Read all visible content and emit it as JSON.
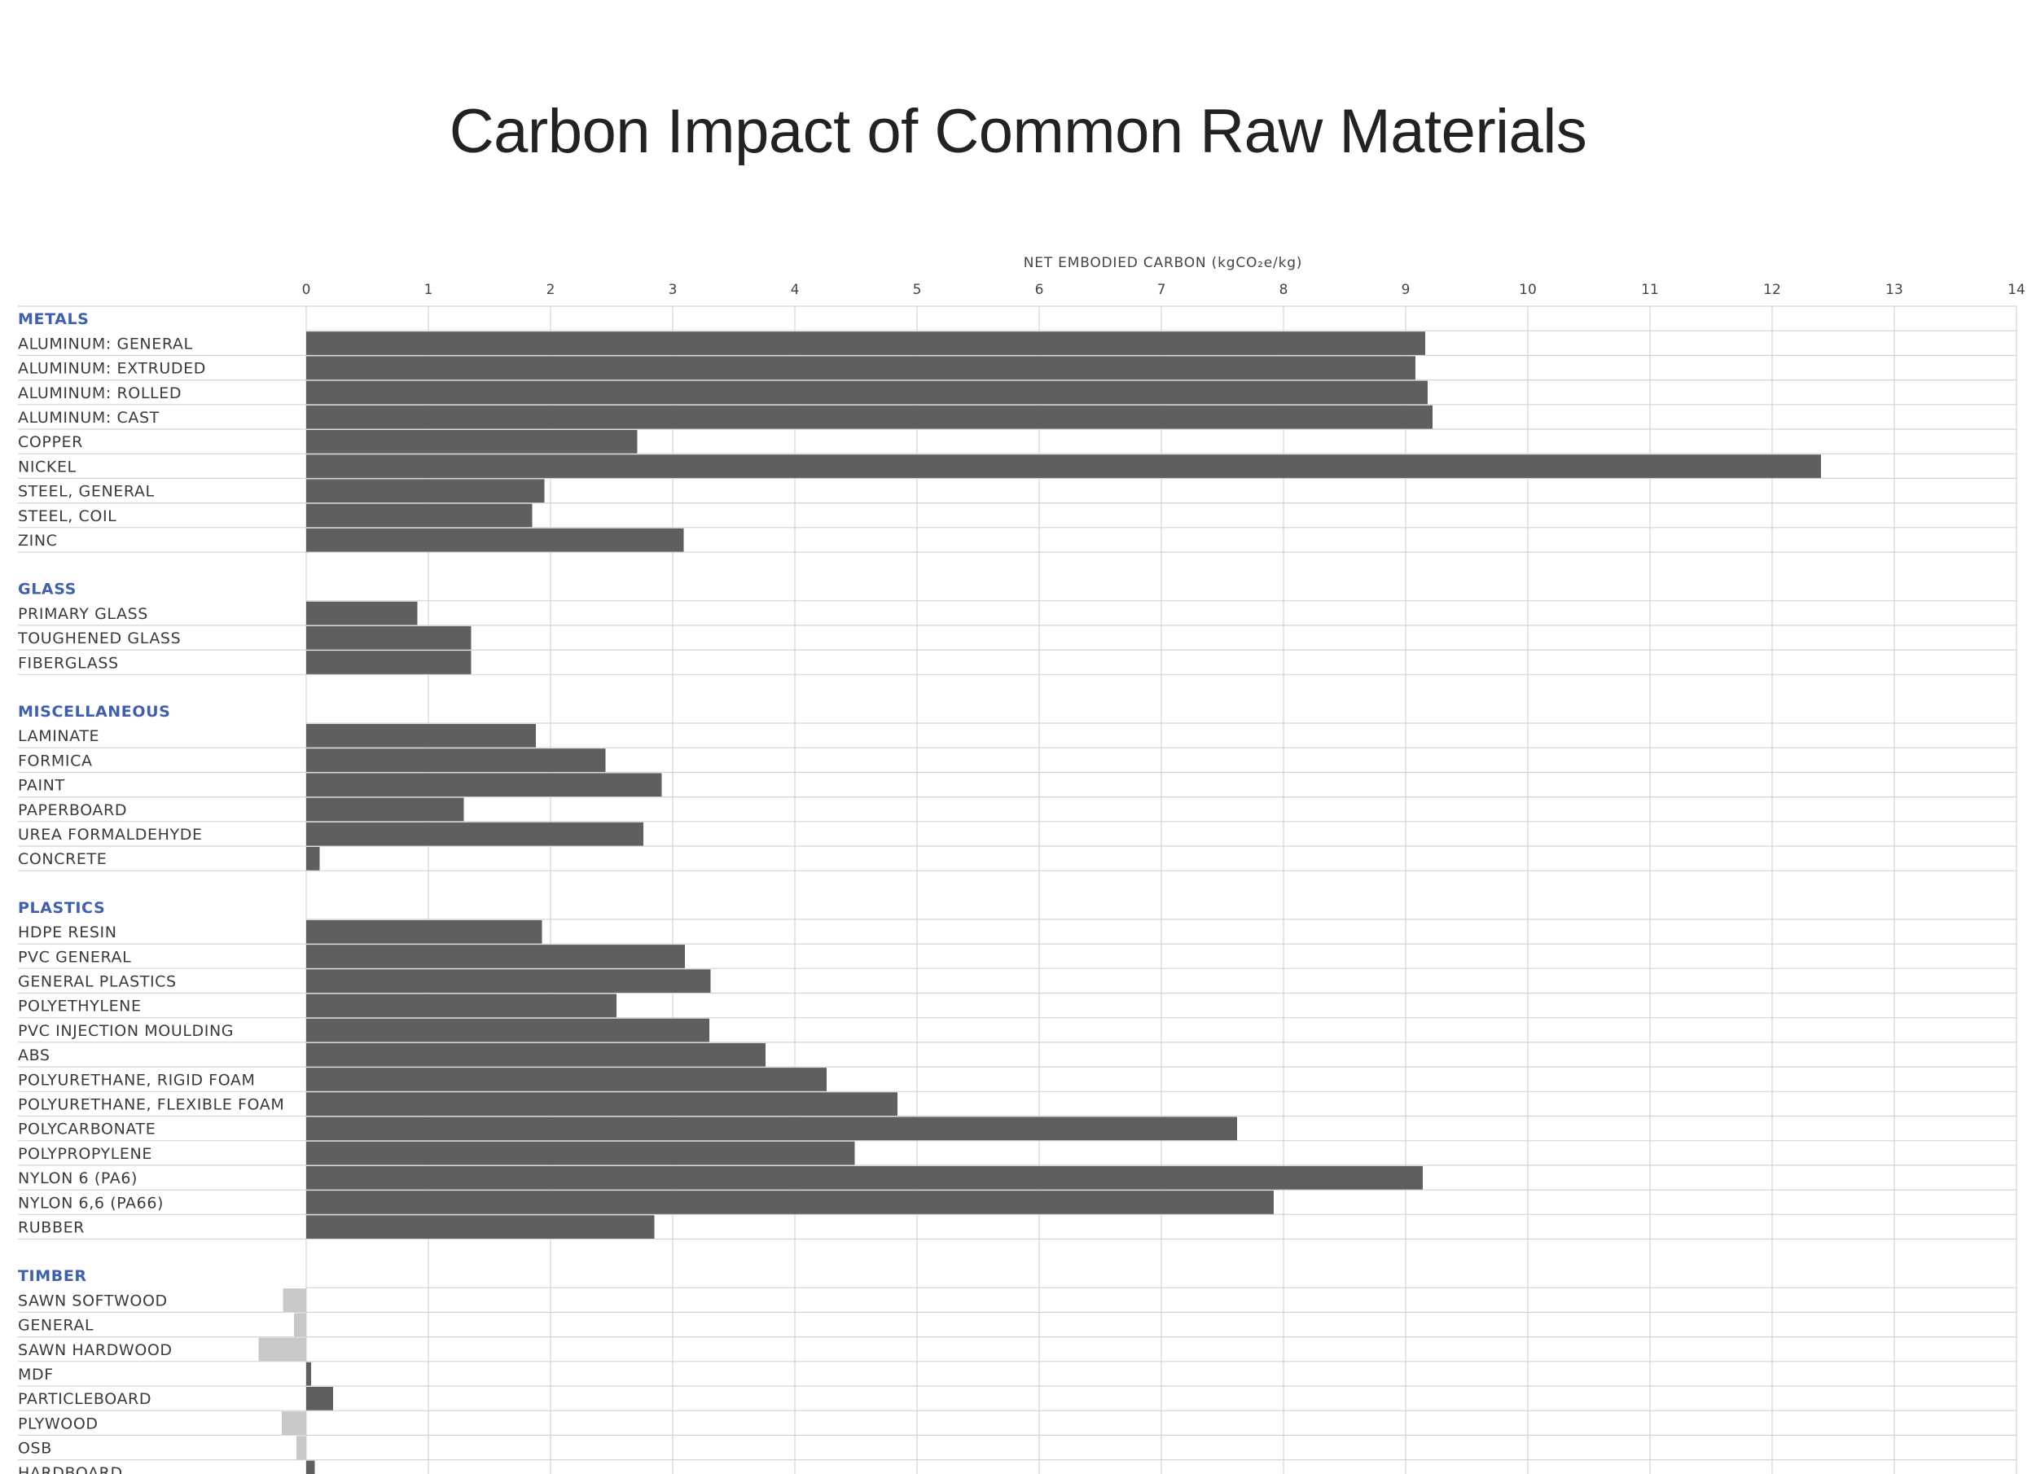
{
  "chart_data": {
    "type": "bar",
    "orientation": "horizontal",
    "title": "Carbon Impact of Common Raw Materials",
    "xlabel": "NET EMBODIED CARBON (kgCO₂e/kg)",
    "xlim": [
      0,
      14
    ],
    "xticks": [
      "0",
      "1",
      "2",
      "3",
      "4",
      "5",
      "6",
      "7",
      "8",
      "9",
      "10",
      "11",
      "12",
      "13",
      "14"
    ],
    "grid": true,
    "colors": {
      "positive": "#5f5f5f",
      "negative": "#c8c8c8",
      "group_label": "#3f5fb0",
      "grid": "#d4d4d4"
    },
    "groups": [
      {
        "name": "METALS",
        "items": [
          {
            "label": "ALUMINUM: GENERAL",
            "value": 9.16
          },
          {
            "label": "ALUMINUM: EXTRUDED",
            "value": 9.08
          },
          {
            "label": "ALUMINUM: ROLLED",
            "value": 9.18
          },
          {
            "label": "ALUMINUM: CAST",
            "value": 9.22
          },
          {
            "label": "COPPER",
            "value": 2.71
          },
          {
            "label": "NICKEL",
            "value": 12.4
          },
          {
            "label": "STEEL, GENERAL",
            "value": 1.95
          },
          {
            "label": "STEEL, COIL",
            "value": 1.85
          },
          {
            "label": "ZINC",
            "value": 3.09
          }
        ]
      },
      {
        "name": "GLASS",
        "items": [
          {
            "label": "PRIMARY GLASS",
            "value": 0.91
          },
          {
            "label": "TOUGHENED GLASS",
            "value": 1.35
          },
          {
            "label": "FIBERGLASS",
            "value": 1.35
          }
        ]
      },
      {
        "name": "MISCELLANEOUS",
        "items": [
          {
            "label": "LAMINATE",
            "value": 1.88
          },
          {
            "label": "FORMICA",
            "value": 2.45
          },
          {
            "label": "PAINT",
            "value": 2.91
          },
          {
            "label": "PAPERBOARD",
            "value": 1.29
          },
          {
            "label": "UREA FORMALDEHYDE",
            "value": 2.76
          },
          {
            "label": "CONCRETE",
            "value": 0.11
          }
        ]
      },
      {
        "name": "PLASTICS",
        "items": [
          {
            "label": "HDPE RESIN",
            "value": 1.93
          },
          {
            "label": "PVC GENERAL",
            "value": 3.1
          },
          {
            "label": "GENERAL PLASTICS",
            "value": 3.31
          },
          {
            "label": "POLYETHYLENE",
            "value": 2.54
          },
          {
            "label": "PVC INJECTION MOULDING",
            "value": 3.3
          },
          {
            "label": "ABS",
            "value": 3.76
          },
          {
            "label": "POLYURETHANE, RIGID FOAM",
            "value": 4.26
          },
          {
            "label": "POLYURETHANE, FLEXIBLE FOAM",
            "value": 4.84
          },
          {
            "label": "POLYCARBONATE",
            "value": 7.62
          },
          {
            "label": "POLYPROPYLENE",
            "value": 4.49
          },
          {
            "label": "NYLON 6 (PA6)",
            "value": 9.14
          },
          {
            "label": "NYLON 6,6 (PA66)",
            "value": 7.92
          },
          {
            "label": "RUBBER",
            "value": 2.85
          }
        ]
      },
      {
        "name": "TIMBER",
        "items": [
          {
            "label": "SAWN SOFTWOOD",
            "value": -0.19
          },
          {
            "label": "GENERAL",
            "value": -0.1
          },
          {
            "label": "SAWN HARDWOOD",
            "value": -0.39
          },
          {
            "label": "MDF",
            "value": 0.04
          },
          {
            "label": "PARTICLEBOARD",
            "value": 0.22
          },
          {
            "label": "PLYWOOD",
            "value": -0.2
          },
          {
            "label": "OSB",
            "value": -0.08
          },
          {
            "label": "HARDBOARD",
            "value": 0.07
          }
        ]
      }
    ]
  }
}
